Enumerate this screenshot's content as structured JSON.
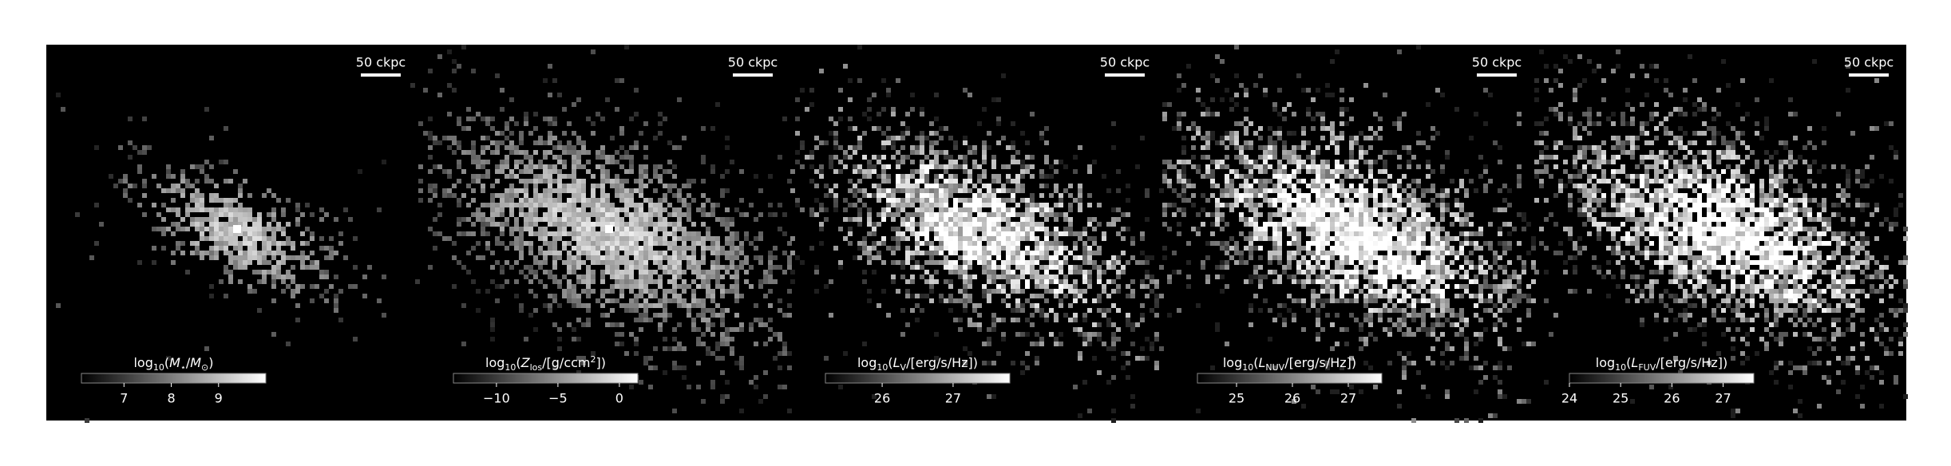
{
  "panels": [
    {
      "scale_bar": "50 ckpc",
      "colorbar": {
        "label": [
          {
            "text": "log"
          },
          {
            "text": "10",
            "sub": true
          },
          {
            "text": "("
          },
          {
            "text": "M",
            "italic": true
          },
          {
            "text": "⋆",
            "sub": true
          },
          {
            "text": "/"
          },
          {
            "text": "M",
            "italic": true
          },
          {
            "text": "⊙",
            "sub": true
          },
          {
            "text": ")"
          }
        ],
        "lim": [
          6.1,
          10.0
        ],
        "ticks": [
          7,
          8,
          9
        ]
      }
    },
    {
      "scale_bar": "50 ckpc",
      "colorbar": {
        "label": [
          {
            "text": "log"
          },
          {
            "text": "10",
            "sub": true
          },
          {
            "text": "("
          },
          {
            "text": "Z",
            "italic": true
          },
          {
            "text": "los",
            "sub": true
          },
          {
            "text": "/[g/ccm"
          },
          {
            "text": "2",
            "sup": true
          },
          {
            "text": "])"
          }
        ],
        "lim": [
          -13.5,
          1.5
        ],
        "ticks": [
          {
            "value": -10,
            "label": "−10"
          },
          {
            "value": -5,
            "label": "−5"
          },
          0
        ]
      }
    },
    {
      "scale_bar": "50 ckpc",
      "colorbar": {
        "label": [
          {
            "text": "log"
          },
          {
            "text": "10",
            "sub": true
          },
          {
            "text": "("
          },
          {
            "text": "L",
            "italic": true
          },
          {
            "text": "V",
            "sub": true
          },
          {
            "text": "/[erg/s/Hz])"
          }
        ],
        "lim": [
          25.2,
          27.8
        ],
        "ticks": [
          26,
          27
        ]
      }
    },
    {
      "scale_bar": "50 ckpc",
      "colorbar": {
        "label": [
          {
            "text": "log"
          },
          {
            "text": "10",
            "sub": true
          },
          {
            "text": "("
          },
          {
            "text": "L",
            "italic": true
          },
          {
            "text": "NUV",
            "sub": true
          },
          {
            "text": "/[erg/s/Hz])"
          }
        ],
        "lim": [
          24.3,
          27.6
        ],
        "ticks": [
          25,
          26,
          27
        ]
      }
    },
    {
      "scale_bar": "50 ckpc",
      "colorbar": {
        "label": [
          {
            "text": "log"
          },
          {
            "text": "10",
            "sub": true
          },
          {
            "text": "("
          },
          {
            "text": "L",
            "italic": true
          },
          {
            "text": "FUV",
            "sub": true
          },
          {
            "text": "/[erg/s/Hz])"
          }
        ],
        "lim": [
          24.0,
          27.6
        ],
        "ticks": [
          24,
          25,
          26,
          27
        ]
      }
    }
  ]
}
